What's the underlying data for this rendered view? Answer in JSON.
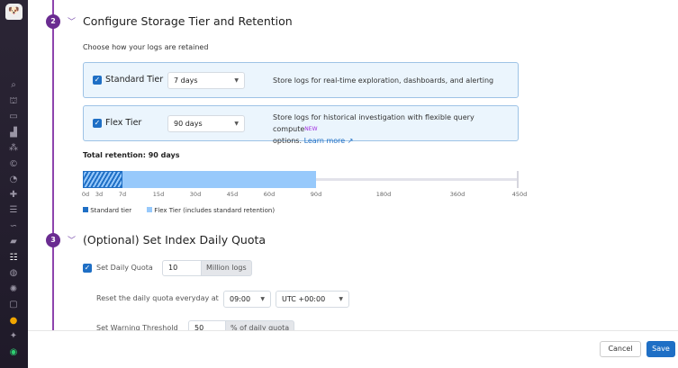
{
  "sidebar": {
    "icons": [
      "logo-icon",
      "search-icon",
      "binoculars-icon",
      "window-icon",
      "chart-icon",
      "nodes-icon",
      "circle-c-icon",
      "gauge-icon",
      "puzzle-icon",
      "filter-icon",
      "route-icon",
      "book-icon",
      "logs-icon",
      "shield-icon",
      "bug-icon",
      "chat-icon",
      "help-icon",
      "sparkle-icon",
      "avatar-icon"
    ]
  },
  "step2": {
    "number": "2",
    "title": "Configure Storage Tier and Retention",
    "subtitle": "Choose how your logs are retained",
    "standard": {
      "label": "Standard Tier",
      "value": "7 days",
      "checked": true,
      "description": "Store logs for real-time exploration, dashboards, and alerting"
    },
    "flex": {
      "label": "Flex Tier",
      "value": "90 days",
      "checked": true,
      "description": "Store logs for historical investigation with flexible query compute",
      "badge": "NEW",
      "description2": "options.",
      "link": "Learn more"
    },
    "total": "Total retention: 90 days",
    "ticks": [
      "0d",
      "3d",
      "7d",
      "15d",
      "30d",
      "45d",
      "60d",
      "90d",
      "180d",
      "360d",
      "450d"
    ],
    "legend": {
      "standard": "Standard tier",
      "flex": "Flex Tier (includes standard retention)"
    },
    "colors": {
      "standard": "#1f6fc5",
      "flex": "#97c9fb"
    }
  },
  "step3": {
    "number": "3",
    "title": "(Optional) Set Index Daily Quota",
    "quota_label": "Set Daily Quota",
    "quota_value": "10",
    "quota_unit": "Million logs",
    "quota_checked": true,
    "reset_label": "Reset the daily quota everyday at",
    "reset_time": "09:00",
    "reset_tz": "UTC +00:00",
    "warn_label": "Set Warning Threshold",
    "warn_value": "50",
    "warn_unit": "% of daily quota"
  },
  "footer": {
    "cancel": "Cancel",
    "save": "Save"
  }
}
